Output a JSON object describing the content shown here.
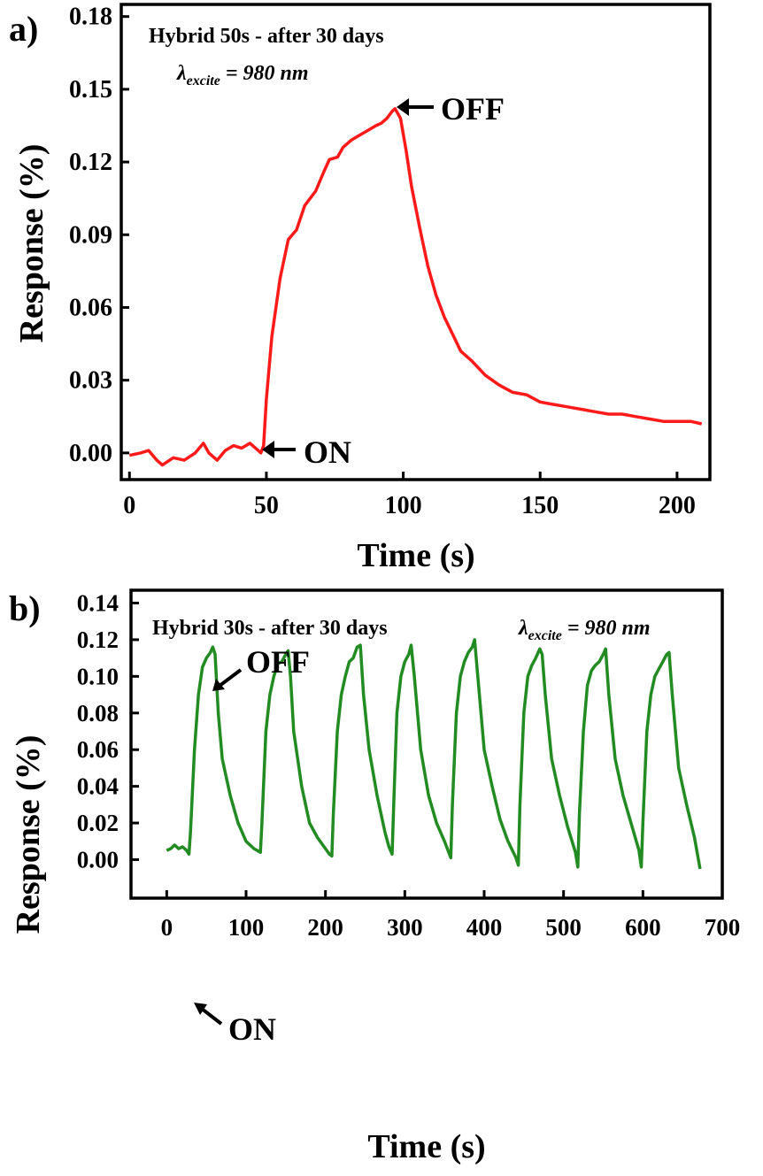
{
  "chart_data": [
    {
      "panel": "a)",
      "type": "line",
      "title": "Hybrid 50s - after 30 days",
      "excitation": {
        "symbol": "λ",
        "subscript": "excite",
        "rest": " = 980 ",
        "unit": "nm"
      },
      "xlabel": "Time (s)",
      "ylabel": "Response (%)",
      "xlim": [
        -3,
        212
      ],
      "ylim": [
        -0.011,
        0.185
      ],
      "xticks": [
        0,
        50,
        100,
        150,
        200
      ],
      "yticks": [
        "0.00",
        "0.03",
        "0.06",
        "0.09",
        "0.12",
        "0.15",
        "0.18"
      ],
      "color": "#ff1a1a",
      "annotations": [
        {
          "text": "ON",
          "x": 48,
          "y": 0.001
        },
        {
          "text": "OFF",
          "x": 97,
          "y": 0.142
        }
      ],
      "series": [
        {
          "x": [
            0,
            4,
            7,
            10,
            12,
            16,
            20,
            24,
            27,
            29,
            32,
            35,
            38,
            41,
            44,
            47,
            48,
            49,
            50,
            52,
            55,
            58,
            61,
            64,
            66,
            68,
            71,
            73,
            76,
            78,
            81,
            84,
            87,
            90,
            92,
            94,
            96,
            97,
            99,
            101,
            103,
            106,
            109,
            112,
            115,
            118,
            121,
            125,
            130,
            135,
            140,
            145,
            150,
            155,
            160,
            165,
            170,
            175,
            180,
            185,
            190,
            195,
            200,
            205,
            209
          ],
          "y": [
            -0.001,
            0.0,
            0.001,
            -0.003,
            -0.005,
            -0.002,
            -0.003,
            0.0,
            0.004,
            0.0,
            -0.003,
            0.001,
            0.003,
            0.002,
            0.004,
            0.001,
            0.0,
            0.003,
            0.022,
            0.048,
            0.072,
            0.088,
            0.092,
            0.102,
            0.105,
            0.108,
            0.116,
            0.121,
            0.122,
            0.126,
            0.129,
            0.131,
            0.133,
            0.135,
            0.136,
            0.138,
            0.141,
            0.142,
            0.138,
            0.125,
            0.11,
            0.093,
            0.077,
            0.065,
            0.056,
            0.049,
            0.042,
            0.038,
            0.032,
            0.028,
            0.025,
            0.024,
            0.021,
            0.02,
            0.019,
            0.018,
            0.017,
            0.016,
            0.016,
            0.015,
            0.014,
            0.013,
            0.013,
            0.013,
            0.012
          ]
        }
      ]
    },
    {
      "panel": "b)",
      "type": "line",
      "title": "Hybrid 30s - after 30 days",
      "excitation": {
        "symbol": "λ",
        "subscript": "excite",
        "rest": " = 980 ",
        "unit": "nm"
      },
      "xlabel": "Time (s)",
      "ylabel": "Response (%)",
      "xlim": [
        -45,
        700
      ],
      "ylim": [
        -0.021,
        0.147
      ],
      "xticks": [
        0,
        100,
        200,
        300,
        400,
        500,
        600,
        700
      ],
      "yticks": [
        "0.00",
        "0.02",
        "0.04",
        "0.06",
        "0.08",
        "0.10",
        "0.12",
        "0.14"
      ],
      "color": "#228b22",
      "annotations": [
        {
          "text": "ON",
          "x": 28,
          "y": 0.003
        },
        {
          "text": "OFF",
          "x": 55,
          "y": 0.116
        }
      ],
      "series": [
        {
          "x": [
            0,
            5,
            10,
            15,
            20,
            25,
            28,
            30,
            35,
            40,
            45,
            50,
            55,
            58,
            61,
            65,
            70,
            80,
            90,
            100,
            110,
            118,
            120,
            125,
            130,
            135,
            140,
            145,
            150,
            153,
            156,
            160,
            170,
            180,
            190,
            200,
            205,
            208,
            210,
            215,
            220,
            225,
            230,
            235,
            240,
            244,
            248,
            255,
            265,
            275,
            280,
            284,
            286,
            290,
            295,
            300,
            305,
            308,
            312,
            320,
            330,
            340,
            350,
            358,
            360,
            365,
            370,
            375,
            380,
            385,
            388,
            392,
            400,
            410,
            420,
            430,
            440,
            443,
            445,
            450,
            455,
            460,
            465,
            470,
            473,
            477,
            485,
            495,
            505,
            515,
            518,
            520,
            525,
            530,
            535,
            540,
            545,
            550,
            553,
            557,
            565,
            575,
            585,
            595,
            598,
            600,
            605,
            610,
            615,
            620,
            625,
            630,
            633,
            637,
            645,
            655,
            665,
            672
          ],
          "y": [
            0.005,
            0.006,
            0.008,
            0.006,
            0.007,
            0.005,
            0.003,
            0.015,
            0.06,
            0.09,
            0.105,
            0.11,
            0.113,
            0.116,
            0.112,
            0.08,
            0.055,
            0.035,
            0.02,
            0.01,
            0.006,
            0.004,
            0.02,
            0.07,
            0.09,
            0.1,
            0.107,
            0.108,
            0.112,
            0.114,
            0.1,
            0.07,
            0.04,
            0.02,
            0.012,
            0.006,
            0.003,
            0.002,
            0.025,
            0.07,
            0.09,
            0.1,
            0.108,
            0.11,
            0.116,
            0.117,
            0.09,
            0.06,
            0.035,
            0.015,
            0.007,
            0.003,
            0.03,
            0.08,
            0.1,
            0.108,
            0.112,
            0.117,
            0.1,
            0.06,
            0.035,
            0.02,
            0.01,
            0.001,
            0.03,
            0.08,
            0.1,
            0.108,
            0.113,
            0.116,
            0.12,
            0.1,
            0.06,
            0.04,
            0.022,
            0.01,
            0.001,
            -0.003,
            0.03,
            0.08,
            0.1,
            0.106,
            0.11,
            0.115,
            0.112,
            0.09,
            0.055,
            0.035,
            0.018,
            0.004,
            -0.004,
            0.025,
            0.07,
            0.095,
            0.103,
            0.106,
            0.108,
            0.112,
            0.115,
            0.09,
            0.055,
            0.035,
            0.02,
            0.005,
            -0.004,
            0.02,
            0.07,
            0.09,
            0.1,
            0.104,
            0.108,
            0.112,
            0.113,
            0.09,
            0.05,
            0.03,
            0.012,
            -0.005
          ]
        }
      ]
    }
  ]
}
